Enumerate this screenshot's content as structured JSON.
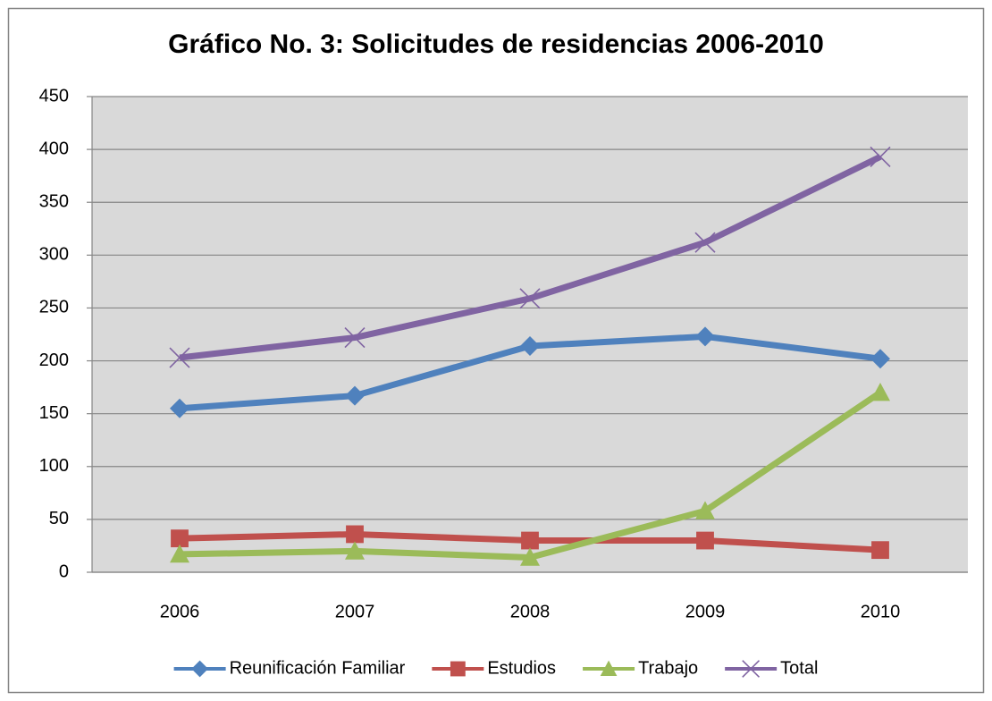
{
  "chart_data": {
    "type": "line",
    "title": "Gráfico No. 3: Solicitudes de residencias 2006-2010",
    "categories": [
      "2006",
      "2007",
      "2008",
      "2009",
      "2010"
    ],
    "series": [
      {
        "name": "Reunificación Familiar",
        "color": "#4f81bd",
        "marker": "diamond",
        "values": [
          155,
          167,
          214,
          223,
          202
        ]
      },
      {
        "name": "Estudios",
        "color": "#c0504d",
        "marker": "square",
        "values": [
          32,
          36,
          30,
          30,
          21
        ]
      },
      {
        "name": "Trabajo",
        "color": "#9bbb59",
        "marker": "triangle",
        "values": [
          17,
          20,
          14,
          58,
          170
        ]
      },
      {
        "name": "Total",
        "color": "#8064a2",
        "marker": "x",
        "values": [
          203,
          222,
          259,
          312,
          393
        ]
      }
    ],
    "ylim": [
      0,
      450
    ],
    "yticks": [
      0,
      50,
      100,
      150,
      200,
      250,
      300,
      350,
      400,
      450
    ],
    "grid": true,
    "legend": "bottom"
  }
}
